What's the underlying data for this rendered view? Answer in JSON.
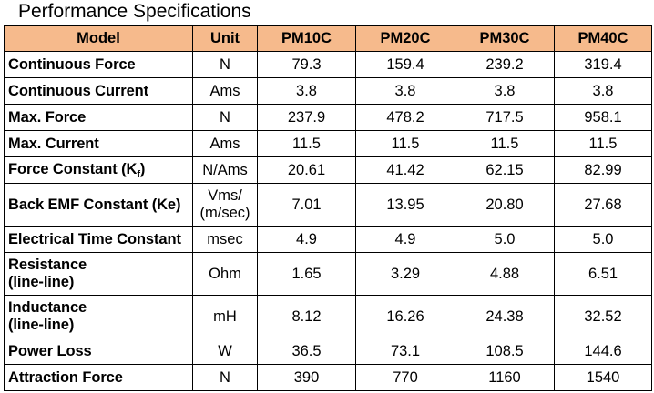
{
  "title": "Performance Specifications",
  "columns": [
    "Model",
    "Unit",
    "PM10C",
    "PM20C",
    "PM30C",
    "PM40C"
  ],
  "rows": [
    {
      "param": "Continuous Force",
      "unit": "N",
      "values": [
        "79.3",
        "159.4",
        "239.2",
        "319.4"
      ]
    },
    {
      "param": "Continuous Current",
      "unit": "Ams",
      "values": [
        "3.8",
        "3.8",
        "3.8",
        "3.8"
      ]
    },
    {
      "param": "Max. Force",
      "unit": "N",
      "values": [
        "237.9",
        "478.2",
        "717.5",
        "958.1"
      ]
    },
    {
      "param": "Max. Current",
      "unit": "Ams",
      "values": [
        "11.5",
        "11.5",
        "11.5",
        "11.5"
      ]
    },
    {
      "param": "Force Constant (K",
      "param_sub": "f",
      "param_end": ")",
      "unit": "N/Ams",
      "values": [
        "20.61",
        "41.42",
        "62.15",
        "82.99"
      ]
    },
    {
      "param": "Back EMF Constant (Ke)",
      "unit_line1": "Vms/",
      "unit_line2": "(m/sec)",
      "values": [
        "7.01",
        "13.95",
        "20.80",
        "27.68"
      ]
    },
    {
      "param": "Electrical Time Constant",
      "unit": "msec",
      "values": [
        "4.9",
        "4.9",
        "5.0",
        "5.0"
      ]
    },
    {
      "param_line1": "Resistance",
      "param_line2": "(line-line)",
      "unit": "Ohm",
      "values": [
        "1.65",
        "3.29",
        "4.88",
        "6.51"
      ]
    },
    {
      "param_line1": "Inductance",
      "param_line2": "(line-line)",
      "unit": "mH",
      "values": [
        "8.12",
        "16.26",
        "24.38",
        "32.52"
      ]
    },
    {
      "param": "Power Loss",
      "unit": "W",
      "values": [
        "36.5",
        "73.1",
        "108.5",
        "144.6"
      ]
    },
    {
      "param": "Attraction Force",
      "unit": "N",
      "values": [
        "390",
        "770",
        "1160",
        "1540"
      ]
    }
  ]
}
